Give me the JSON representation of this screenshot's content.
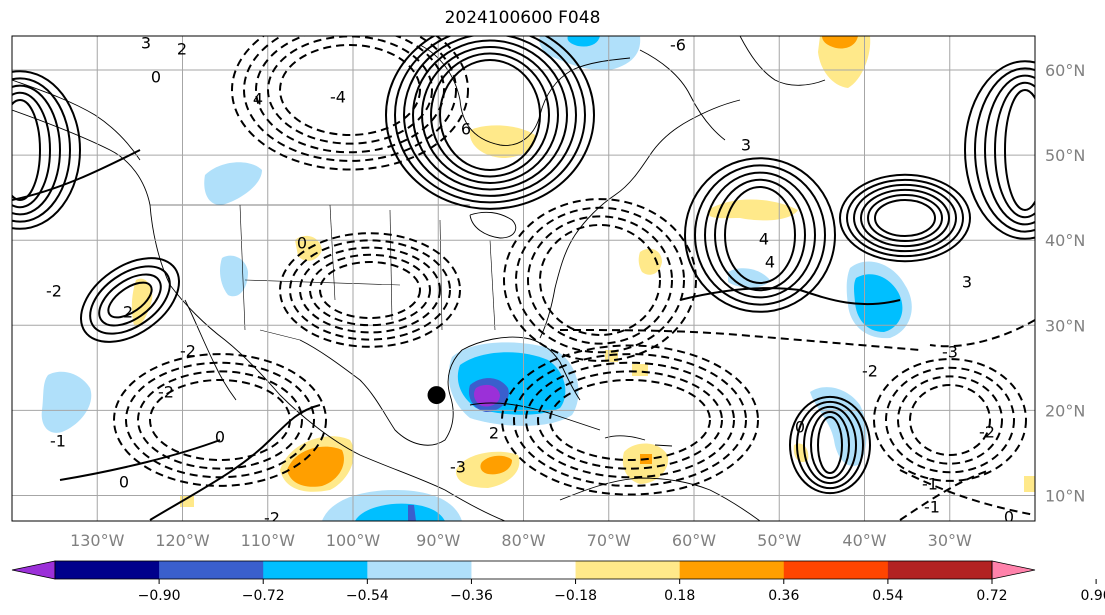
{
  "title": "2024100600 F048",
  "map": {
    "projection": "PlateCarree",
    "lon_range": [
      -140,
      -20
    ],
    "lat_range": [
      7,
      64
    ],
    "gridline_color": "#a6a6a6",
    "tick_color": "#808080",
    "lon_ticks": [
      "130°W",
      "120°W",
      "110°W",
      "100°W",
      "90°W",
      "80°W",
      "70°W",
      "60°W",
      "50°W",
      "40°W",
      "30°W"
    ],
    "lat_ticks": [
      "60°N",
      "50°N",
      "40°N",
      "30°N",
      "20°N",
      "10°N"
    ],
    "marker": {
      "name": "point",
      "lon": -90.2,
      "lat": 21.8,
      "color": "#000000"
    }
  },
  "contour_labels": [
    "3",
    "2",
    "0",
    "4",
    "6",
    "-4",
    "-6",
    "3",
    "4",
    "4",
    "3",
    "-3",
    "-2",
    "-2",
    "0",
    "0",
    "0",
    "-2",
    "-2",
    "-1",
    "-2",
    "2",
    "-3",
    "-2",
    "0",
    "-1",
    "-1",
    "0",
    "2"
  ],
  "colorbar": {
    "extend": "both",
    "colors": [
      "#9b30d8",
      "#00008b",
      "#3a5fcd",
      "#00bfff",
      "#b0e0fa",
      "#ffffff",
      "#ffe98a",
      "#ff9f00",
      "#ff4500",
      "#b22222",
      "#ff82ab"
    ],
    "ticks": [
      "−0.90",
      "−0.72",
      "−0.54",
      "−0.36",
      "−0.18",
      "0.18",
      "0.36",
      "0.54",
      "0.72",
      "0.90"
    ]
  }
}
